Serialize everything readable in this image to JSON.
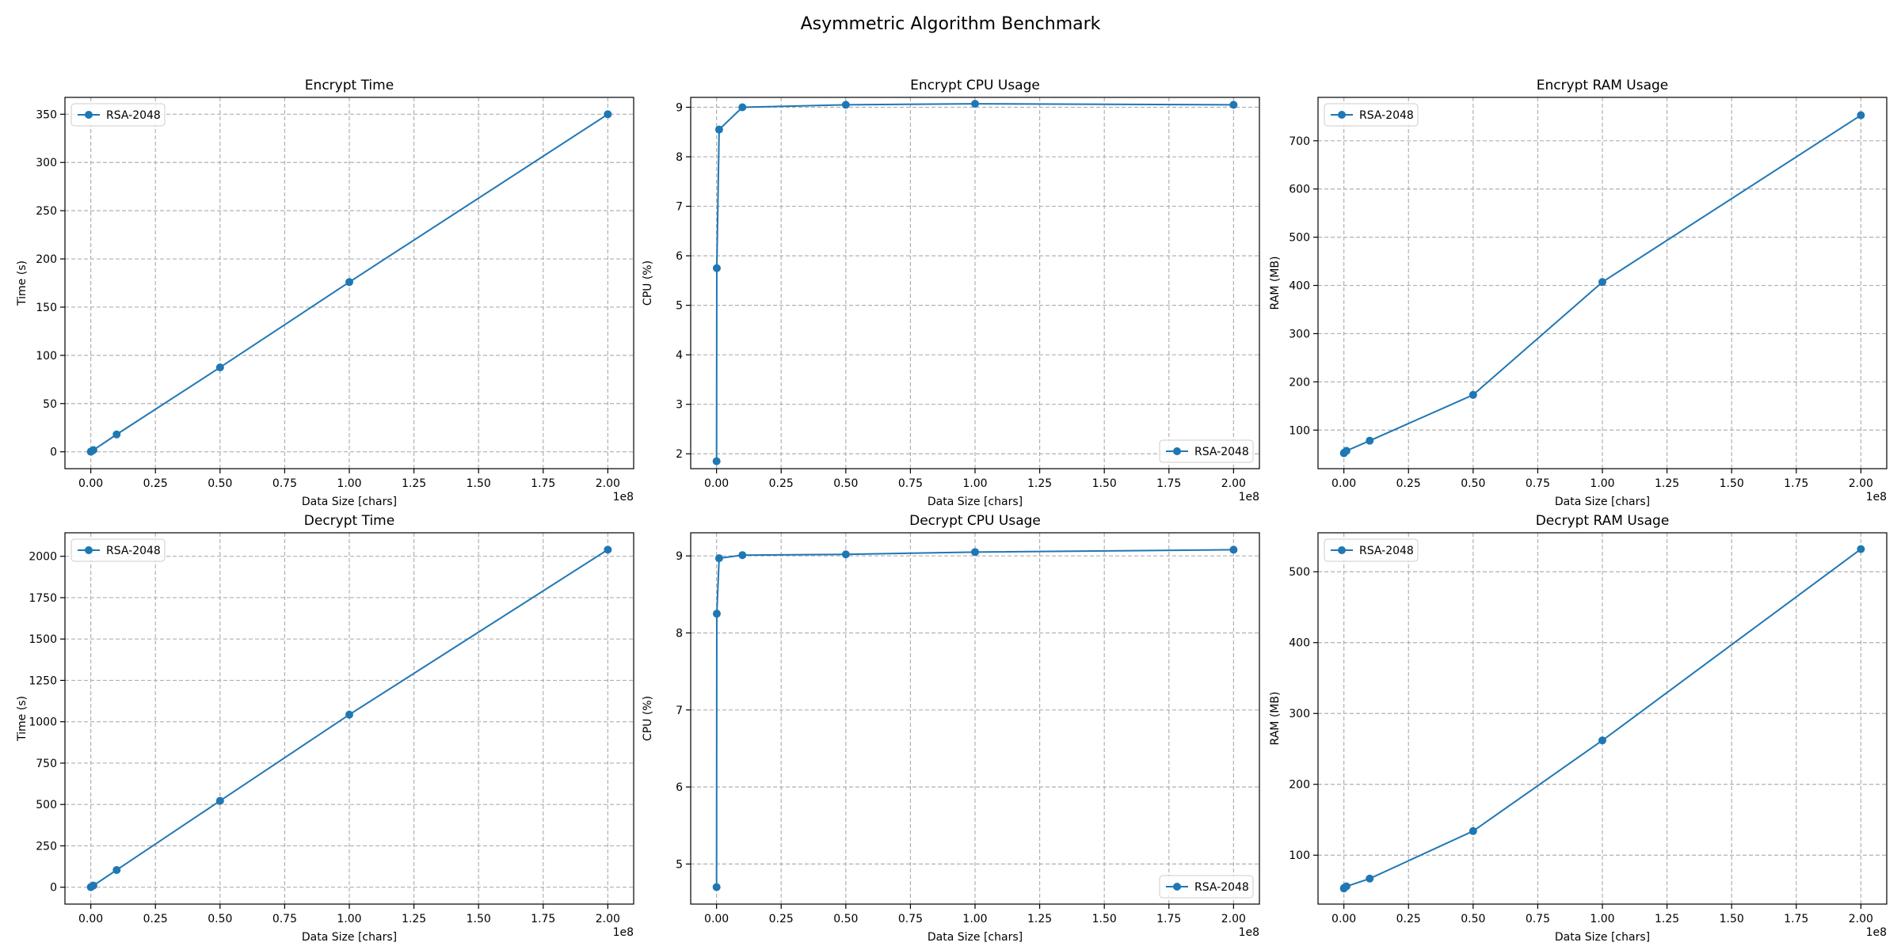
{
  "figure": {
    "title": "Asymmetric Algorithm Benchmark"
  },
  "colors": {
    "series": "#1f77b4",
    "grid": "#b0b0b0",
    "axis": "#000000"
  },
  "chart_data": [
    {
      "type": "line",
      "title": "Encrypt Time",
      "xlabel": "Data Size [chars]",
      "ylabel": "Time (s)",
      "x_offset_label": "1e8",
      "xlim": [
        -0.1,
        2.1
      ],
      "ylim": [
        -17.5,
        367.5
      ],
      "xticks": [
        0.0,
        0.25,
        0.5,
        0.75,
        1.0,
        1.25,
        1.5,
        1.75,
        2.0
      ],
      "xtick_labels": [
        "0.00",
        "0.25",
        "0.50",
        "0.75",
        "1.00",
        "1.25",
        "1.50",
        "1.75",
        "2.00"
      ],
      "yticks": [
        0,
        50,
        100,
        150,
        200,
        250,
        300,
        350
      ],
      "ytick_labels": [
        "0",
        "50",
        "100",
        "150",
        "200",
        "250",
        "300",
        "350"
      ],
      "grid": true,
      "legend": "upper left",
      "series": [
        {
          "name": "RSA-2048",
          "x": [
            0.0001,
            0.001,
            0.01,
            0.1,
            0.5,
            1.0,
            2.0
          ],
          "y": [
            0.1,
            0.4,
            1.8,
            18,
            87.5,
            176,
            350
          ]
        }
      ]
    },
    {
      "type": "line",
      "title": "Encrypt CPU Usage",
      "xlabel": "Data Size [chars]",
      "ylabel": "CPU (%)",
      "x_offset_label": "1e8",
      "xlim": [
        -0.1,
        2.1
      ],
      "ylim": [
        1.7,
        9.2
      ],
      "xticks": [
        0.0,
        0.25,
        0.5,
        0.75,
        1.0,
        1.25,
        1.5,
        1.75,
        2.0
      ],
      "xtick_labels": [
        "0.00",
        "0.25",
        "0.50",
        "0.75",
        "1.00",
        "1.25",
        "1.50",
        "1.75",
        "2.00"
      ],
      "yticks": [
        2,
        3,
        4,
        5,
        6,
        7,
        8,
        9
      ],
      "ytick_labels": [
        "2",
        "3",
        "4",
        "5",
        "6",
        "7",
        "8",
        "9"
      ],
      "grid": true,
      "legend": "lower right",
      "series": [
        {
          "name": "RSA-2048",
          "x": [
            0.0001,
            0.001,
            0.01,
            0.1,
            0.5,
            1.0,
            2.0
          ],
          "y": [
            1.85,
            5.75,
            8.55,
            9.0,
            9.05,
            9.07,
            9.05
          ]
        }
      ]
    },
    {
      "type": "line",
      "title": "Encrypt RAM Usage",
      "xlabel": "Data Size [chars]",
      "ylabel": "RAM (MB)",
      "x_offset_label": "1e8",
      "xlim": [
        -0.1,
        2.1
      ],
      "ylim": [
        20,
        790
      ],
      "xticks": [
        0.0,
        0.25,
        0.5,
        0.75,
        1.0,
        1.25,
        1.5,
        1.75,
        2.0
      ],
      "xtick_labels": [
        "0.00",
        "0.25",
        "0.50",
        "0.75",
        "1.00",
        "1.25",
        "1.50",
        "1.75",
        "2.00"
      ],
      "yticks": [
        100,
        200,
        300,
        400,
        500,
        600,
        700
      ],
      "ytick_labels": [
        "100",
        "200",
        "300",
        "400",
        "500",
        "600",
        "700"
      ],
      "grid": true,
      "legend": "upper left",
      "series": [
        {
          "name": "RSA-2048",
          "x": [
            0.0001,
            0.001,
            0.01,
            0.1,
            0.5,
            1.0,
            2.0
          ],
          "y": [
            52,
            53,
            57,
            78,
            173,
            407,
            753
          ]
        }
      ]
    },
    {
      "type": "line",
      "title": "Decrypt Time",
      "xlabel": "Data Size [chars]",
      "ylabel": "Time (s)",
      "x_offset_label": "1e8",
      "xlim": [
        -0.1,
        2.1
      ],
      "ylim": [
        -102,
        2142
      ],
      "xticks": [
        0.0,
        0.25,
        0.5,
        0.75,
        1.0,
        1.25,
        1.5,
        1.75,
        2.0
      ],
      "xtick_labels": [
        "0.00",
        "0.25",
        "0.50",
        "0.75",
        "1.00",
        "1.25",
        "1.50",
        "1.75",
        "2.00"
      ],
      "yticks": [
        0,
        250,
        500,
        750,
        1000,
        1250,
        1500,
        1750,
        2000
      ],
      "ytick_labels": [
        "0",
        "250",
        "500",
        "750",
        "1000",
        "1250",
        "1500",
        "1750",
        "2000"
      ],
      "grid": true,
      "legend": "upper left",
      "series": [
        {
          "name": "RSA-2048",
          "x": [
            0.0001,
            0.001,
            0.01,
            0.1,
            0.5,
            1.0,
            2.0
          ],
          "y": [
            0.5,
            2,
            10,
            104,
            522,
            1043,
            2040
          ]
        }
      ]
    },
    {
      "type": "line",
      "title": "Decrypt CPU Usage",
      "xlabel": "Data Size [chars]",
      "ylabel": "CPU (%)",
      "x_offset_label": "1e8",
      "xlim": [
        -0.1,
        2.1
      ],
      "ylim": [
        4.48,
        9.3
      ],
      "xticks": [
        0.0,
        0.25,
        0.5,
        0.75,
        1.0,
        1.25,
        1.5,
        1.75,
        2.0
      ],
      "xtick_labels": [
        "0.00",
        "0.25",
        "0.50",
        "0.75",
        "1.00",
        "1.25",
        "1.50",
        "1.75",
        "2.00"
      ],
      "yticks": [
        5,
        6,
        7,
        8,
        9
      ],
      "ytick_labels": [
        "5",
        "6",
        "7",
        "8",
        "9"
      ],
      "grid": true,
      "legend": "lower right",
      "series": [
        {
          "name": "RSA-2048",
          "x": [
            0.0001,
            0.001,
            0.01,
            0.1,
            0.5,
            1.0,
            2.0
          ],
          "y": [
            4.7,
            8.25,
            8.97,
            9.01,
            9.02,
            9.05,
            9.08
          ]
        }
      ]
    },
    {
      "type": "line",
      "title": "Decrypt RAM Usage",
      "xlabel": "Data Size [chars]",
      "ylabel": "RAM (MB)",
      "x_offset_label": "1e8",
      "xlim": [
        -0.1,
        2.1
      ],
      "ylim": [
        31,
        555
      ],
      "xticks": [
        0.0,
        0.25,
        0.5,
        0.75,
        1.0,
        1.25,
        1.5,
        1.75,
        2.0
      ],
      "xtick_labels": [
        "0.00",
        "0.25",
        "0.50",
        "0.75",
        "1.00",
        "1.25",
        "1.50",
        "1.75",
        "2.00"
      ],
      "yticks": [
        100,
        200,
        300,
        400,
        500
      ],
      "ytick_labels": [
        "100",
        "200",
        "300",
        "400",
        "500"
      ],
      "grid": true,
      "legend": "upper left",
      "series": [
        {
          "name": "RSA-2048",
          "x": [
            0.0001,
            0.001,
            0.01,
            0.1,
            0.5,
            1.0,
            2.0
          ],
          "y": [
            53,
            54,
            56,
            67,
            134,
            262,
            532
          ]
        }
      ]
    }
  ]
}
